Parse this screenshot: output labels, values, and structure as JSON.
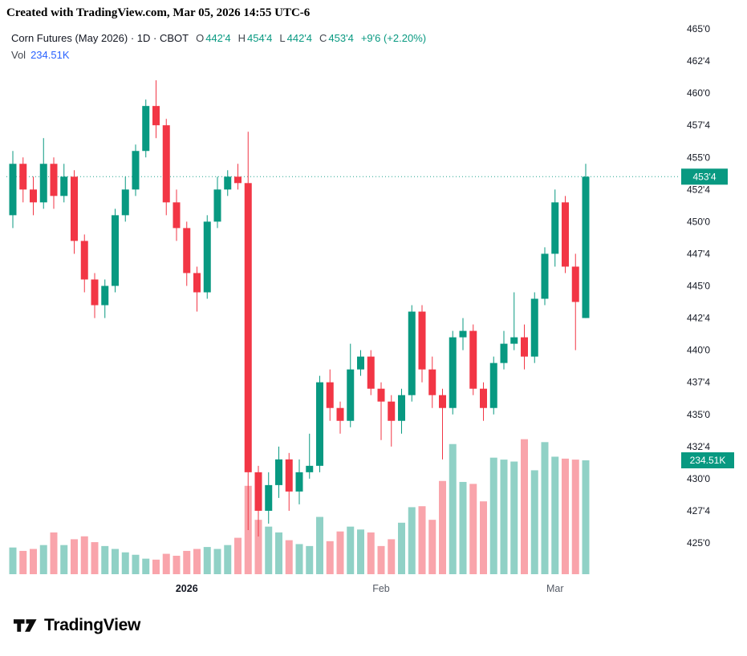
{
  "attribution": "Created with TradingView.com, Mar 05, 2026 14:55 UTC-6",
  "legend": {
    "title": "Corn Futures (May 2026) · 1D · CBOT",
    "o_label": "O",
    "o": "442'4",
    "h_label": "H",
    "h": "454'4",
    "l_label": "L",
    "l": "442'4",
    "c_label": "C",
    "c": "453'4",
    "change": "+9'6 (+2.20%)"
  },
  "volume_row": {
    "label": "Vol",
    "value": "234.51K"
  },
  "badges": {
    "price": "453'4",
    "volume": "234.51K"
  },
  "footer": {
    "logo": "TradingView"
  },
  "colors": {
    "up": "#089981",
    "down": "#f23645",
    "vol_up": "rgba(8,153,129,0.45)",
    "vol_down": "rgba(242,54,69,0.45)",
    "badge": "#089981",
    "badge_text": "#ffffff",
    "axis_text": "#131722",
    "time_text": "#555b66",
    "volume_value": "#2962ff"
  },
  "chart_data": {
    "type": "candlestick",
    "title": "Corn Futures (May 2026) · 1D · CBOT",
    "has_volume": true,
    "grid": false,
    "last_close": 453.5,
    "last_close_label": "453'4",
    "last_volume_label": "234.51K",
    "volume_ref": 234.51,
    "price_axis": {
      "min": 425,
      "max": 465,
      "ticks": [
        {
          "t": "465'0",
          "v": 465
        },
        {
          "t": "462'4",
          "v": 462.5
        },
        {
          "t": "460'0",
          "v": 460
        },
        {
          "t": "457'4",
          "v": 457.5
        },
        {
          "t": "455'0",
          "v": 455
        },
        {
          "t": "452'4",
          "v": 452.5
        },
        {
          "t": "450'0",
          "v": 450
        },
        {
          "t": "447'4",
          "v": 447.5
        },
        {
          "t": "445'0",
          "v": 445
        },
        {
          "t": "442'4",
          "v": 442.5
        },
        {
          "t": "440'0",
          "v": 440
        },
        {
          "t": "437'4",
          "v": 437.5
        },
        {
          "t": "435'0",
          "v": 435
        },
        {
          "t": "432'4",
          "v": 432.5
        },
        {
          "t": "430'0",
          "v": 430
        },
        {
          "t": "427'4",
          "v": 427.5
        },
        {
          "t": "425'0",
          "v": 425
        }
      ]
    },
    "x_labels": [
      {
        "label": "2026",
        "index": 17,
        "bold": true
      },
      {
        "label": "Feb",
        "index": 36,
        "bold": false
      },
      {
        "label": "Mar",
        "index": 53,
        "bold": false
      }
    ],
    "candles_format": [
      "open",
      "high",
      "low",
      "close",
      "volume_k"
    ],
    "candles": [
      [
        450.5,
        455.5,
        449.5,
        454.5,
        55
      ],
      [
        454.5,
        455.0,
        451.5,
        452.5,
        48
      ],
      [
        452.5,
        453.5,
        450.5,
        451.5,
        52
      ],
      [
        451.5,
        456.5,
        451.0,
        454.5,
        60
      ],
      [
        454.5,
        455.0,
        451.0,
        452.0,
        86
      ],
      [
        452.0,
        454.5,
        451.5,
        453.5,
        60
      ],
      [
        453.5,
        454.0,
        447.5,
        448.5,
        72
      ],
      [
        448.5,
        449.0,
        444.5,
        445.5,
        78
      ],
      [
        445.5,
        446.0,
        442.5,
        443.5,
        66
      ],
      [
        443.5,
        445.5,
        442.5,
        445.0,
        58
      ],
      [
        445.0,
        451.0,
        444.5,
        450.5,
        52
      ],
      [
        450.5,
        453.5,
        450.0,
        452.5,
        45
      ],
      [
        452.5,
        456.0,
        452.0,
        455.5,
        40
      ],
      [
        455.5,
        459.5,
        455.0,
        459.0,
        32
      ],
      [
        459.0,
        461.0,
        456.5,
        457.5,
        30
      ],
      [
        457.5,
        458.0,
        450.5,
        451.5,
        42
      ],
      [
        451.5,
        452.5,
        448.5,
        449.5,
        38
      ],
      [
        449.5,
        450.0,
        445.0,
        446.0,
        48
      ],
      [
        446.0,
        446.5,
        443.0,
        444.5,
        52
      ],
      [
        444.5,
        450.5,
        444.0,
        450.0,
        56
      ],
      [
        450.0,
        453.5,
        449.5,
        452.5,
        52
      ],
      [
        452.5,
        454.0,
        452.0,
        453.5,
        60
      ],
      [
        453.5,
        454.5,
        452.5,
        453.0,
        75
      ],
      [
        453.0,
        457.0,
        426.0,
        430.5,
        182
      ],
      [
        430.5,
        431.0,
        425.5,
        427.5,
        112
      ],
      [
        427.5,
        430.5,
        426.5,
        429.5,
        98
      ],
      [
        429.5,
        432.5,
        428.5,
        431.5,
        86
      ],
      [
        431.5,
        432.0,
        427.5,
        429.0,
        70
      ],
      [
        429.0,
        431.5,
        428.0,
        430.5,
        62
      ],
      [
        430.5,
        433.5,
        430.0,
        431.0,
        58
      ],
      [
        431.0,
        438.0,
        430.5,
        437.5,
        118
      ],
      [
        437.5,
        438.5,
        434.5,
        435.5,
        68
      ],
      [
        435.5,
        436.0,
        433.5,
        434.5,
        88
      ],
      [
        434.5,
        440.5,
        434.0,
        438.5,
        98
      ],
      [
        438.5,
        440.0,
        438.0,
        439.5,
        92
      ],
      [
        439.5,
        440.0,
        436.5,
        437.0,
        86
      ],
      [
        437.0,
        437.5,
        433.0,
        436.0,
        58
      ],
      [
        436.0,
        436.5,
        432.5,
        434.5,
        72
      ],
      [
        434.5,
        437.0,
        433.5,
        436.5,
        106
      ],
      [
        436.5,
        443.5,
        436.0,
        443.0,
        138
      ],
      [
        443.0,
        443.5,
        437.5,
        438.5,
        140
      ],
      [
        438.5,
        439.5,
        435.5,
        436.5,
        112
      ],
      [
        436.5,
        437.0,
        431.5,
        435.5,
        192
      ],
      [
        435.5,
        441.5,
        435.0,
        441.0,
        268
      ],
      [
        441.0,
        442.5,
        440.0,
        441.5,
        190
      ],
      [
        441.5,
        442.0,
        436.5,
        437.0,
        186
      ],
      [
        437.0,
        437.5,
        434.5,
        435.5,
        150
      ],
      [
        435.5,
        439.5,
        435.0,
        439.0,
        240
      ],
      [
        439.0,
        441.5,
        438.5,
        440.5,
        236
      ],
      [
        440.5,
        444.5,
        440.0,
        441.0,
        232
      ],
      [
        441.0,
        442.0,
        438.5,
        439.5,
        278
      ],
      [
        439.5,
        444.5,
        439.0,
        444.0,
        214
      ],
      [
        444.0,
        448.0,
        443.5,
        447.5,
        272
      ],
      [
        447.5,
        452.5,
        446.5,
        451.5,
        242
      ],
      [
        451.5,
        452.0,
        446.0,
        446.5,
        238
      ],
      [
        446.5,
        447.5,
        440.0,
        443.75,
        236
      ],
      [
        442.5,
        454.5,
        442.5,
        453.5,
        234.51
      ]
    ]
  }
}
